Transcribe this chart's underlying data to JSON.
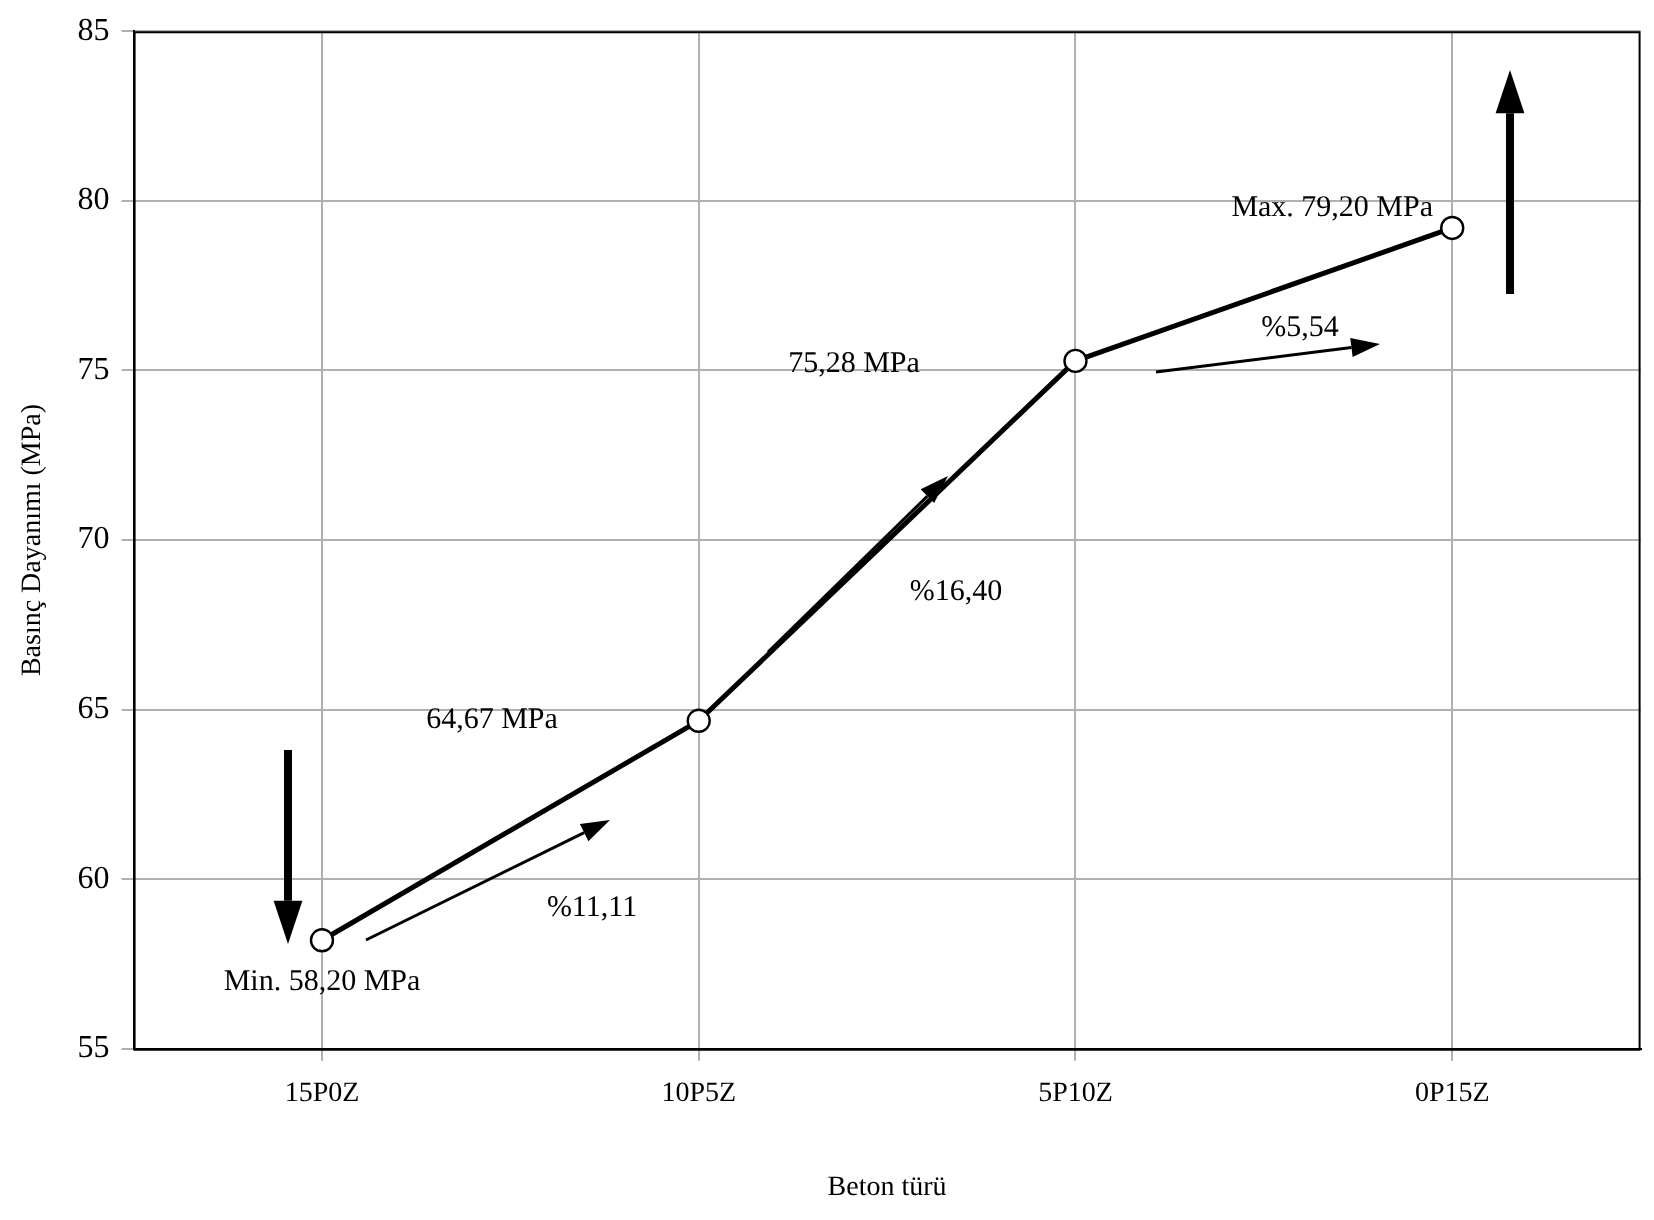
{
  "chart_data": {
    "type": "line",
    "xlabel": "Beton türü",
    "ylabel": "Basınç Dayanımı (MPa)",
    "categories": [
      "15P0Z",
      "10P5Z",
      "5P10Z",
      "0P15Z"
    ],
    "series": [
      {
        "color": "#000000",
        "values": [
          58.2,
          64.67,
          75.28,
          79.2
        ]
      }
    ],
    "ylim": [
      55,
      85
    ],
    "yticks": [
      55,
      60,
      65,
      70,
      75,
      80,
      85
    ],
    "grid": true,
    "legend": false,
    "marker": "circle",
    "line_style": "solid",
    "annotations": [
      {
        "text": "Min. 58,20 MPa",
        "x": "15P0Z",
        "y": 58.2
      },
      "64,67 MPa",
      "75,28 MPa",
      {
        "text": "Max. 79,20 MPa",
        "x": "0P15Z",
        "y": 79.2
      },
      "%11,11",
      "%16,40",
      "%5,54"
    ]
  }
}
